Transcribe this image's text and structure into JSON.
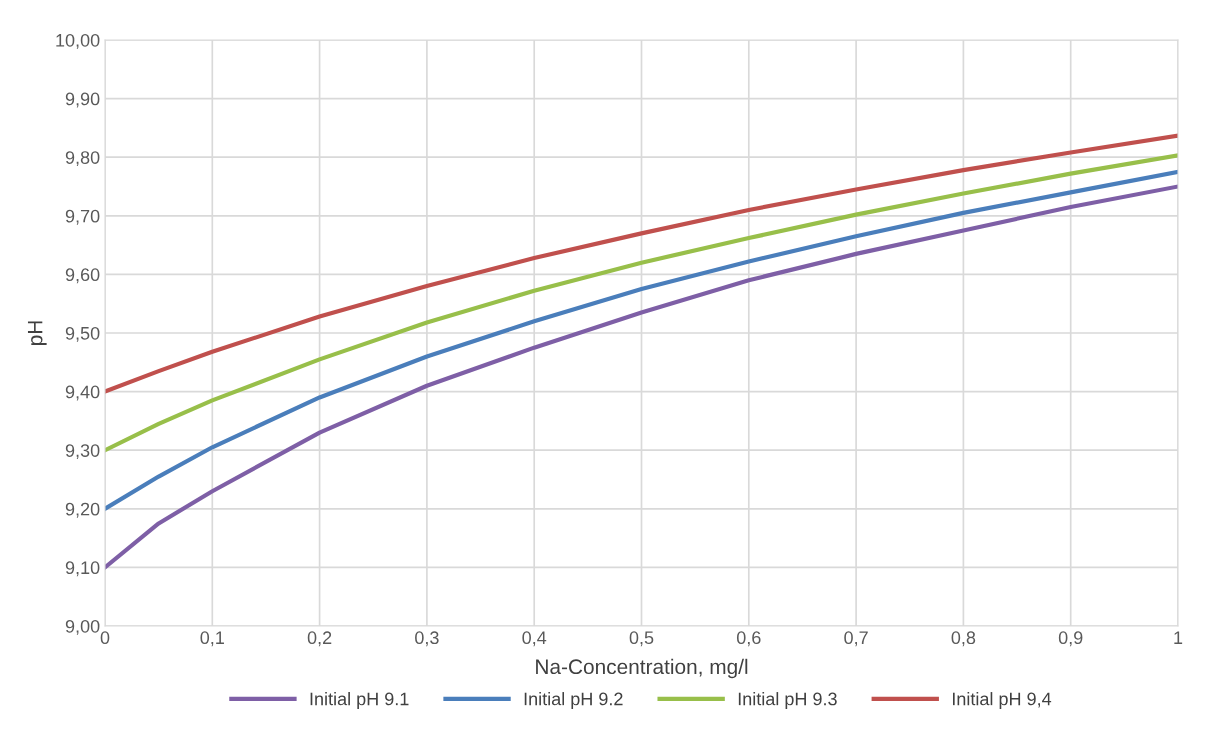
{
  "chart_data": {
    "type": "line",
    "xlabel": "Na-Concentration, mg/l",
    "ylabel": "pH",
    "x": [
      0,
      0.05,
      0.1,
      0.2,
      0.3,
      0.4,
      0.5,
      0.6,
      0.7,
      0.8,
      0.9,
      1
    ],
    "series": [
      {
        "name": "Initial pH 9.1",
        "color": "#7e5fa6",
        "values": [
          9.1,
          9.175,
          9.23,
          9.33,
          9.41,
          9.475,
          9.535,
          9.59,
          9.635,
          9.675,
          9.715,
          9.75
        ]
      },
      {
        "name": "Initial pH 9.2",
        "color": "#4a7ebb",
        "values": [
          9.2,
          9.255,
          9.305,
          9.39,
          9.46,
          9.52,
          9.575,
          9.622,
          9.665,
          9.705,
          9.74,
          9.775
        ]
      },
      {
        "name": "Initial pH 9.3",
        "color": "#98bf4a",
        "values": [
          9.3,
          9.345,
          9.385,
          9.455,
          9.518,
          9.572,
          9.62,
          9.662,
          9.702,
          9.738,
          9.772,
          9.803
        ]
      },
      {
        "name": "Initial pH 9,4",
        "color": "#c0504d",
        "values": [
          9.4,
          9.435,
          9.468,
          9.528,
          9.58,
          9.628,
          9.67,
          9.71,
          9.745,
          9.778,
          9.808,
          9.837
        ]
      }
    ],
    "xlim": [
      0,
      1
    ],
    "ylim": [
      9.0,
      10.0
    ],
    "xticks": [
      0,
      {
        "value": 0.1,
        "label": "0,1"
      },
      {
        "value": 0.2,
        "label": "0,2"
      },
      {
        "value": 0.3,
        "label": "0,3"
      },
      {
        "value": 0.4,
        "label": "0,4"
      },
      {
        "value": 0.5,
        "label": "0,5"
      },
      {
        "value": 0.6,
        "label": "0,6"
      },
      {
        "value": 0.7,
        "label": "0,7"
      },
      {
        "value": 0.8,
        "label": "0,8"
      },
      {
        "value": 0.9,
        "label": "0,9"
      },
      1
    ],
    "yticks": [
      {
        "value": 9.0,
        "label": "9,00"
      },
      {
        "value": 9.1,
        "label": "9,10"
      },
      {
        "value": 9.2,
        "label": "9,20"
      },
      {
        "value": 9.3,
        "label": "9,30"
      },
      {
        "value": 9.4,
        "label": "9,40"
      },
      {
        "value": 9.5,
        "label": "9,50"
      },
      {
        "value": 9.6,
        "label": "9,60"
      },
      {
        "value": 9.7,
        "label": "9,70"
      },
      {
        "value": 9.8,
        "label": "9,80"
      },
      {
        "value": 9.9,
        "label": "9,90"
      },
      {
        "value": 10.0,
        "label": "10,00"
      }
    ],
    "grid": true,
    "legend": "bottom",
    "marker": "none",
    "line_style": "solid"
  }
}
